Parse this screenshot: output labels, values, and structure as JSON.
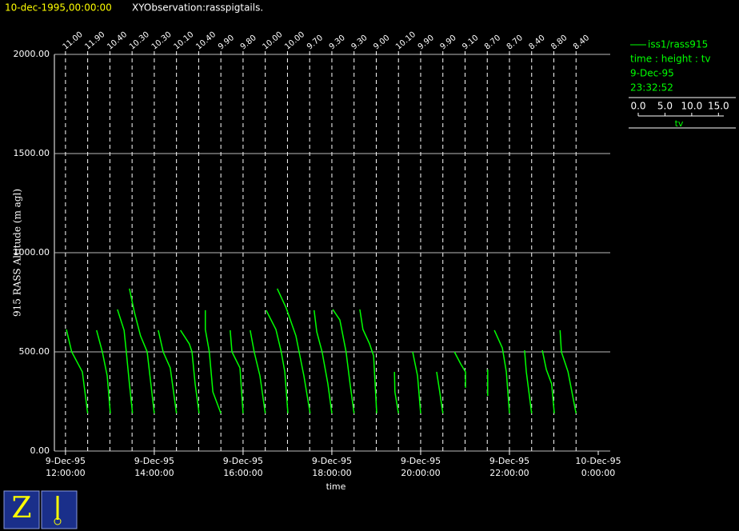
{
  "header": {
    "date": "10-dec-1995,00:00:00",
    "title": "XYObservation:rasspigtails."
  },
  "chart_data": {
    "type": "pigtail",
    "y_label": "915 RASS Altitude (m agl)",
    "x_label": "time",
    "color": "#00ff00",
    "xlim": [
      11.75,
      24.27
    ],
    "ylim": [
      0,
      2000
    ],
    "yticks": [
      {
        "value": 0,
        "label": "0.00"
      },
      {
        "value": 500,
        "label": "500.00"
      },
      {
        "value": 1000,
        "label": "1000.00"
      },
      {
        "value": 1500,
        "label": "1500.00"
      },
      {
        "value": 2000,
        "label": "2000.00"
      }
    ],
    "xticks": [
      {
        "value": 12,
        "label": [
          "9-Dec-95",
          "12:00:00"
        ]
      },
      {
        "value": 14,
        "label": [
          "9-Dec-95",
          "14:00:00"
        ]
      },
      {
        "value": 16,
        "label": [
          "9-Dec-95",
          "16:00:00"
        ]
      },
      {
        "value": 18,
        "label": [
          "9-Dec-95",
          "18:00:00"
        ]
      },
      {
        "value": 20,
        "label": [
          "9-Dec-95",
          "20:00:00"
        ]
      },
      {
        "value": 22,
        "label": [
          "9-Dec-95",
          "22:00:00"
        ]
      },
      {
        "value": 24,
        "label": [
          "10-Dec-95",
          "0:00:00"
        ]
      }
    ],
    "profile_times": [
      12,
      12.5,
      13,
      13.5,
      14,
      14.5,
      15,
      15.5,
      16,
      16.5,
      17,
      17.5,
      18,
      18.5,
      19,
      19.5,
      20,
      20.5,
      21,
      21.5,
      22,
      22.5,
      23,
      23.5
    ],
    "profile_labels": [
      "11.00",
      "11.90",
      "10.40",
      "10.30",
      "10.30",
      "10.10",
      "10.40",
      "9.90",
      "9.80",
      "10.00",
      "10.00",
      "9.70",
      "9.30",
      "9.30",
      "9.00",
      "10.10",
      "9.90",
      "9.90",
      "9.10",
      "8.70",
      "8.70",
      "8.40",
      "8.80",
      "8.40"
    ],
    "series": [
      {
        "x": [
          12.02,
          12.14,
          12.38,
          12.5
        ],
        "values": [
          613,
          500,
          399,
          190
        ]
      },
      {
        "x": [
          12.7,
          12.83,
          12.94,
          13.01
        ],
        "values": [
          609,
          500,
          379,
          190
        ]
      },
      {
        "x": [
          13.17,
          13.32,
          13.37,
          13.44,
          13.51
        ],
        "values": [
          714,
          609,
          500,
          339,
          190
        ]
      },
      {
        "x": [
          13.44,
          13.55,
          13.69,
          13.84,
          14.0
        ],
        "values": [
          819,
          702,
          581,
          500,
          190
        ]
      },
      {
        "x": [
          14.09,
          14.2,
          14.36,
          14.5
        ],
        "values": [
          609,
          500,
          419,
          190
        ]
      },
      {
        "x": [
          14.59,
          14.79,
          14.85,
          14.92,
          15.01
        ],
        "values": [
          609,
          540,
          500,
          339,
          190
        ]
      },
      {
        "x": [
          15.15,
          15.15,
          15.24,
          15.32,
          15.5
        ],
        "values": [
          710,
          613,
          500,
          298,
          190
        ]
      },
      {
        "x": [
          15.71,
          15.75,
          15.93,
          16.0
        ],
        "values": [
          609,
          500,
          419,
          190
        ]
      },
      {
        "x": [
          16.16,
          16.25,
          16.38,
          16.5
        ],
        "values": [
          609,
          500,
          379,
          190
        ]
      },
      {
        "x": [
          16.52,
          16.74,
          16.86,
          16.94,
          17.01
        ],
        "values": [
          710,
          613,
          500,
          399,
          190
        ]
      },
      {
        "x": [
          16.77,
          16.97,
          17.19,
          17.37,
          17.51
        ],
        "values": [
          819,
          722,
          581,
          379,
          190
        ]
      },
      {
        "x": [
          17.6,
          17.66,
          17.78,
          17.91,
          18.0
        ],
        "values": [
          710,
          601,
          500,
          339,
          190
        ]
      },
      {
        "x": [
          18.02,
          18.18,
          18.32,
          18.41,
          18.5
        ],
        "values": [
          714,
          661,
          500,
          339,
          190
        ]
      },
      {
        "x": [
          18.63,
          18.7,
          18.85,
          18.94,
          19.01
        ],
        "values": [
          714,
          613,
          540,
          480,
          190
        ]
      },
      {
        "x": [
          19.41,
          19.42,
          19.5
        ],
        "values": [
          399,
          298,
          190
        ]
      },
      {
        "x": [
          19.82,
          19.93,
          20.0
        ],
        "values": [
          500,
          379,
          190
        ]
      },
      {
        "x": [
          20.36,
          20.43,
          20.5
        ],
        "values": [
          399,
          298,
          190
        ]
      },
      {
        "x": [
          20.76,
          20.9,
          21.01,
          21.01
        ],
        "values": [
          500,
          440,
          399,
          319
        ]
      },
      {
        "x": [
          21.51,
          21.51
        ],
        "values": [
          411,
          278
        ]
      },
      {
        "x": [
          21.66,
          21.84,
          21.93,
          22.0
        ],
        "values": [
          609,
          520,
          399,
          190
        ]
      },
      {
        "x": [
          22.34,
          22.38,
          22.5
        ],
        "values": [
          508,
          399,
          190
        ]
      },
      {
        "x": [
          22.74,
          22.83,
          22.95,
          23.01
        ],
        "values": [
          508,
          411,
          339,
          190
        ]
      },
      {
        "x": [
          23.14,
          23.17,
          23.32,
          23.5
        ],
        "values": [
          609,
          500,
          399,
          190
        ]
      }
    ]
  },
  "legend": {
    "name": "iss1/rass915",
    "fields": "time : height : tv",
    "date": "9-Dec-95",
    "time": "23:32:52",
    "tv_label": "tv",
    "tv_lim": [
      0,
      16
    ],
    "tv_ticks": [
      {
        "value": 0,
        "label": "0.0"
      },
      {
        "value": 5,
        "label": "5.0"
      },
      {
        "value": 10,
        "label": "10.0"
      },
      {
        "value": 15,
        "label": "15.0"
      }
    ]
  }
}
